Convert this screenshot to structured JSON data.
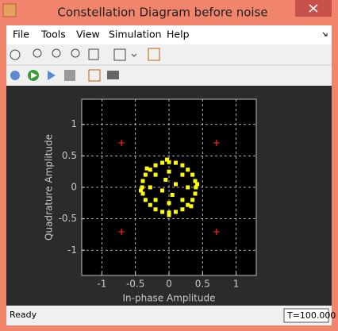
{
  "window": {
    "title": "Constellation Diagram before noise",
    "menu": [
      "File",
      "Tools",
      "View",
      "Simulation",
      "Help"
    ],
    "status": "Ready",
    "time": "T=100.000"
  },
  "chart_data": {
    "type": "scatter",
    "xlabel": "In-phase Amplitude",
    "ylabel": "Quadrature Amplitude",
    "xlim": [
      -1.3,
      1.3
    ],
    "ylim": [
      -1.4,
      1.4
    ],
    "xticks": [
      -1,
      -0.5,
      0,
      0.5,
      1
    ],
    "yticks": [
      -1,
      -0.5,
      0,
      0.5,
      1
    ],
    "grid": true,
    "series": [
      {
        "color": "#ffff00",
        "marker": "dot",
        "x": [
          0.4,
          0.39,
          0.35,
          0.28,
          0.2,
          0.1,
          0,
          -0.1,
          -0.2,
          -0.28,
          -0.35,
          -0.39,
          -0.4,
          -0.39,
          -0.35,
          -0.28,
          -0.2,
          -0.1,
          0,
          0.1,
          0.2,
          0.28,
          0.35,
          0.39,
          0.42,
          -0.03,
          0,
          -0.42,
          0.33,
          -0.33,
          0.2,
          -0.2,
          0.2,
          -0.2,
          0.1,
          -0.1,
          0.05,
          -0.05,
          0.28,
          -0.28,
          0,
          0
        ],
        "y": [
          0,
          0.1,
          0.2,
          0.28,
          0.35,
          0.39,
          0.4,
          0.39,
          0.35,
          0.28,
          0.2,
          0.1,
          0,
          -0.1,
          -0.2,
          -0.28,
          -0.35,
          -0.39,
          -0.4,
          -0.39,
          -0.35,
          -0.28,
          -0.2,
          -0.1,
          0.05,
          0.44,
          -0.44,
          -0.05,
          -0.3,
          0.3,
          0.2,
          0.2,
          -0.2,
          -0.2,
          0.05,
          -0.05,
          -0.12,
          0.12,
          0,
          0,
          0.25,
          -0.25
        ]
      },
      {
        "color": "#ff2020",
        "marker": "plus",
        "x": [
          0.707,
          -0.707,
          -0.707,
          0.707
        ],
        "y": [
          0.707,
          0.707,
          -0.707,
          -0.707
        ]
      }
    ]
  }
}
